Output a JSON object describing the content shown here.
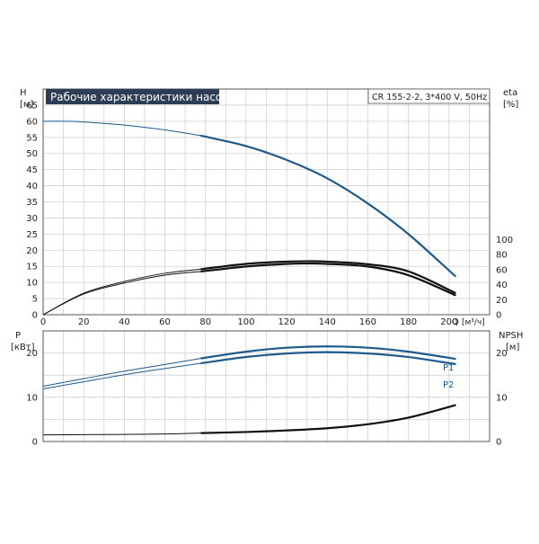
{
  "chart_data": [
    {
      "type": "line",
      "title": "Рабочие характеристики насоса",
      "subtitle": "CR 155-2-2, 3*400 V, 50Hz",
      "ylabel": "H",
      "yunit": "[м]",
      "y2label": "eta",
      "y2unit": "[%]",
      "xlabel": "Q",
      "xunit": "[м³/ч]",
      "xlim": [
        0,
        220
      ],
      "ylim": [
        0,
        70
      ],
      "y2lim": [
        0,
        100
      ],
      "x_ticks": [
        "0",
        "20",
        "40",
        "60",
        "80",
        "100",
        "120",
        "140",
        "160",
        "180",
        "200"
      ],
      "y_ticks": [
        "0",
        "5",
        "10",
        "15",
        "20",
        "25",
        "30",
        "35",
        "40",
        "45",
        "50",
        "55",
        "60",
        "65"
      ],
      "y2_ticks": [
        "0",
        "20",
        "40",
        "60",
        "80",
        "100"
      ],
      "grid": true,
      "series": [
        {
          "kind": "head",
          "axis": "left",
          "color": "#1f5a8c",
          "x": [
            0,
            10,
            20,
            40,
            60,
            78,
            100,
            120,
            140,
            160,
            180,
            203
          ],
          "y": [
            60,
            60,
            59.8,
            58.8,
            57.3,
            55.5,
            52.3,
            48,
            42.3,
            34.5,
            25,
            12
          ]
        },
        {
          "kind": "efficiency",
          "axis": "right",
          "color": "#111111",
          "x": [
            0,
            20,
            40,
            60,
            78,
            100,
            120,
            130,
            140,
            160,
            180,
            203
          ],
          "y": [
            0,
            27.5,
            42,
            52.5,
            57.5,
            64,
            67.5,
            68,
            67.5,
            64,
            52.5,
            26
          ]
        },
        {
          "kind": "efficiency",
          "axis": "right",
          "color": "#111111",
          "x": [
            0,
            20,
            40,
            60,
            78,
            100,
            120,
            130,
            140,
            160,
            180,
            203
          ],
          "y": [
            0,
            28.5,
            44,
            55,
            60.5,
            67.5,
            70.5,
            71,
            70.5,
            67,
            57.5,
            29
          ]
        }
      ]
    },
    {
      "type": "line",
      "ylabel": "P",
      "yunit": "[кВт]",
      "y2label": "NPSH",
      "y2unit": "[м]",
      "xlim": [
        0,
        220
      ],
      "ylim": [
        0,
        25
      ],
      "y2lim": [
        0,
        25
      ],
      "y_ticks": [
        "0",
        "10",
        "20"
      ],
      "y2_ticks": [
        "0",
        "10",
        "20"
      ],
      "grid": true,
      "series": [
        {
          "name": "P1",
          "kind": "power",
          "axis": "left",
          "color": "#1f5a8c",
          "x": [
            0,
            20,
            40,
            60,
            78,
            100,
            120,
            140,
            160,
            180,
            203
          ],
          "y": [
            12.5,
            14.2,
            15.9,
            17.4,
            18.8,
            20.3,
            21.2,
            21.5,
            21.2,
            20.3,
            18.7
          ]
        },
        {
          "name": "P2",
          "kind": "power",
          "axis": "left",
          "color": "#1f5a8c",
          "x": [
            0,
            20,
            40,
            60,
            78,
            100,
            120,
            140,
            160,
            180,
            203
          ],
          "y": [
            11.9,
            13.5,
            15.1,
            16.5,
            17.7,
            19.1,
            19.9,
            20.2,
            19.9,
            19.1,
            17.5
          ]
        },
        {
          "kind": "npsh",
          "axis": "right",
          "color": "#111111",
          "x": [
            0,
            20,
            40,
            60,
            78,
            100,
            120,
            140,
            160,
            180,
            203
          ],
          "y": [
            1.5,
            1.55,
            1.6,
            1.7,
            1.9,
            2.15,
            2.5,
            3.0,
            3.9,
            5.4,
            8.2
          ]
        }
      ]
    }
  ]
}
